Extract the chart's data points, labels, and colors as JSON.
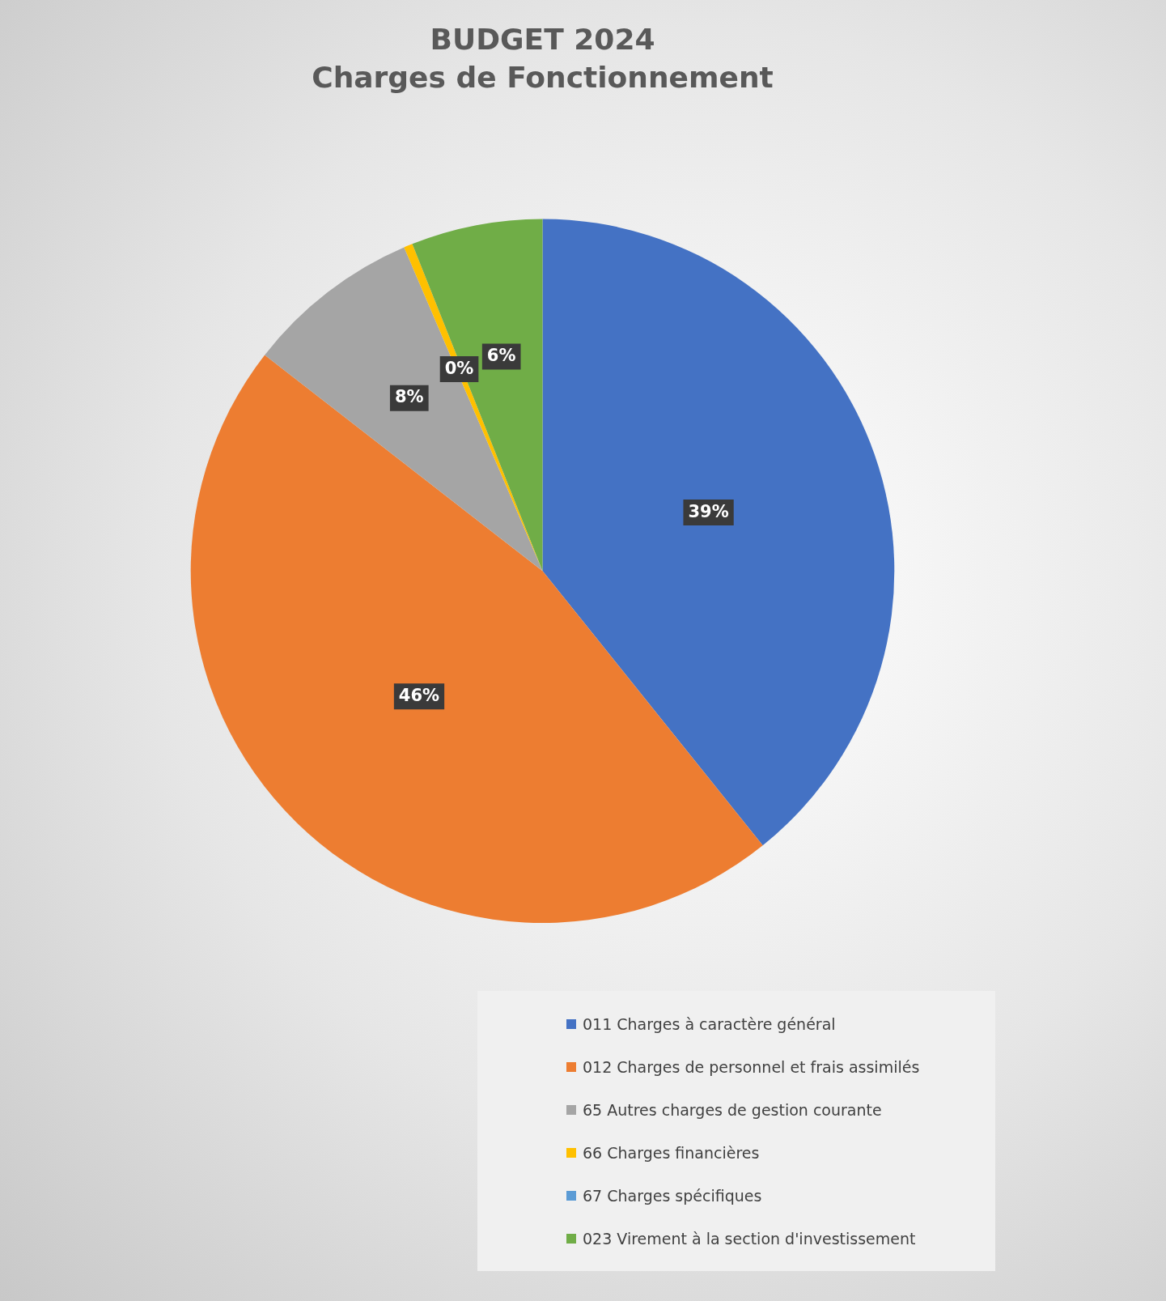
{
  "chart_data": {
    "type": "pie",
    "title": "BUDGET 2024",
    "subtitle": "Charges de Fonctionnement",
    "categories": [
      "011 Charges à caractère général",
      "012 Charges de personnel et frais assimilés",
      "65 Autres charges de gestion courante",
      "66 Charges financières",
      "67 Charges spécifiques",
      "023 Virement à la section d'investissement"
    ],
    "values": [
      39,
      46,
      8,
      0.4,
      0,
      6
    ],
    "value_labels": [
      "39%",
      "46%",
      "8%",
      "0%",
      null,
      "6%"
    ],
    "colors": [
      "#4472c4",
      "#ed7d31",
      "#a5a5a5",
      "#ffc000",
      "#5b9bd5",
      "#70ad47"
    ],
    "legend": "bottom right"
  }
}
